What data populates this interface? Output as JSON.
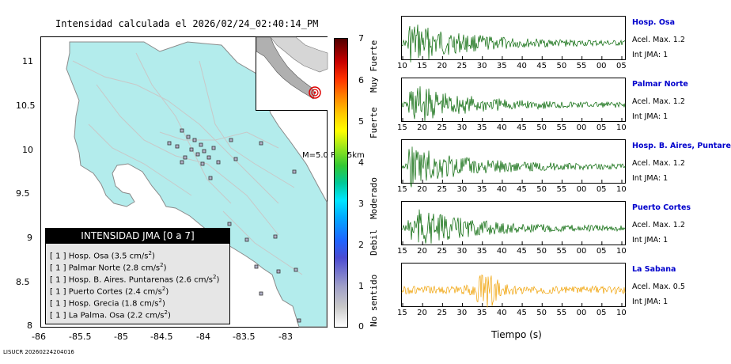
{
  "map": {
    "title": "Intensidad calculada el 2026/02/24_02:40:14_PM",
    "y_ticks": [
      "11",
      "10.5",
      "10",
      "9.5",
      "9",
      "8.5",
      "8"
    ],
    "x_ticks": [
      "-86",
      "-85.5",
      "-85",
      "-84.5",
      "-84",
      "-83.5",
      "-83"
    ],
    "inset_caption": "M=5.0 P=15km",
    "colors": {
      "land": "#b3ecec",
      "roads": "#c8c8c8",
      "station": "#b0b0c8",
      "epicenter": "#dd0000"
    }
  },
  "legend": {
    "title": "INTENSIDAD JMA [0 a 7]",
    "rows": [
      {
        "bracket": "[ 1 ]",
        "name": "Hosp. Osa",
        "value": "(3.5 cm/s",
        "exp": "2",
        "close": ")"
      },
      {
        "bracket": "[ 1 ]",
        "name": "Palmar Norte",
        "value": "(2.8 cm/s",
        "exp": "2",
        "close": ")"
      },
      {
        "bracket": "[ 1 ]",
        "name": "Hosp. B. Aires. Puntarenas",
        "value": "(2.6 cm/s",
        "exp": "2",
        "close": ")"
      },
      {
        "bracket": "[ 1 ]",
        "name": "Puerto Cortes",
        "value": "(2.4 cm/s",
        "exp": "2",
        "close": ")"
      },
      {
        "bracket": "[ 1 ]",
        "name": "Hosp. Grecia",
        "value": "(1.8 cm/s",
        "exp": "2",
        "close": ")"
      },
      {
        "bracket": "[ 1 ]",
        "name": "La Palma. Osa",
        "value": "(2.2 cm/s",
        "exp": "2",
        "close": ")"
      }
    ]
  },
  "colorbar": {
    "ticks": [
      "7",
      "6",
      "5",
      "4",
      "3",
      "2",
      "1",
      "0"
    ],
    "labels": [
      "Muy Fuerte",
      "Fuerte",
      "Moderado",
      "Debil",
      "No sentido"
    ]
  },
  "traces": [
    {
      "name": "Hosp. Osa",
      "accel": "Acel. Max. 1.2",
      "int": "Int JMA: 1",
      "color": "#006400",
      "ticks": [
        "10",
        "15",
        "20",
        "25",
        "30",
        "35",
        "40",
        "45",
        "50",
        "55",
        "00",
        "05"
      ]
    },
    {
      "name": "Palmar Norte",
      "accel": "Acel. Max. 1.2",
      "int": "Int JMA: 1",
      "color": "#006400",
      "ticks": [
        "15",
        "20",
        "25",
        "30",
        "35",
        "40",
        "45",
        "50",
        "55",
        "00",
        "05",
        "10"
      ]
    },
    {
      "name": "Hosp. B. Aires, Puntare",
      "accel": "Acel. Max. 1.2",
      "int": "Int JMA: 1",
      "color": "#006400",
      "ticks": [
        "15",
        "20",
        "25",
        "30",
        "35",
        "40",
        "45",
        "50",
        "55",
        "00",
        "05",
        "10"
      ]
    },
    {
      "name": "Puerto Cortes",
      "accel": "Acel. Max. 1.2",
      "int": "Int JMA: 1",
      "color": "#006400",
      "ticks": [
        "15",
        "20",
        "25",
        "30",
        "35",
        "40",
        "45",
        "50",
        "55",
        "00",
        "05",
        "10"
      ]
    },
    {
      "name": "La Sabana",
      "accel": "Acel. Max. 0.5",
      "int": "Int JMA: 1",
      "color": "#f0a000",
      "ticks": [
        "15",
        "20",
        "25",
        "30",
        "35",
        "40",
        "45",
        "50",
        "55",
        "00",
        "05",
        "10"
      ]
    }
  ],
  "xaxis_label": "Tiempo (s)",
  "footer": "LISUCR 20260224204016"
}
